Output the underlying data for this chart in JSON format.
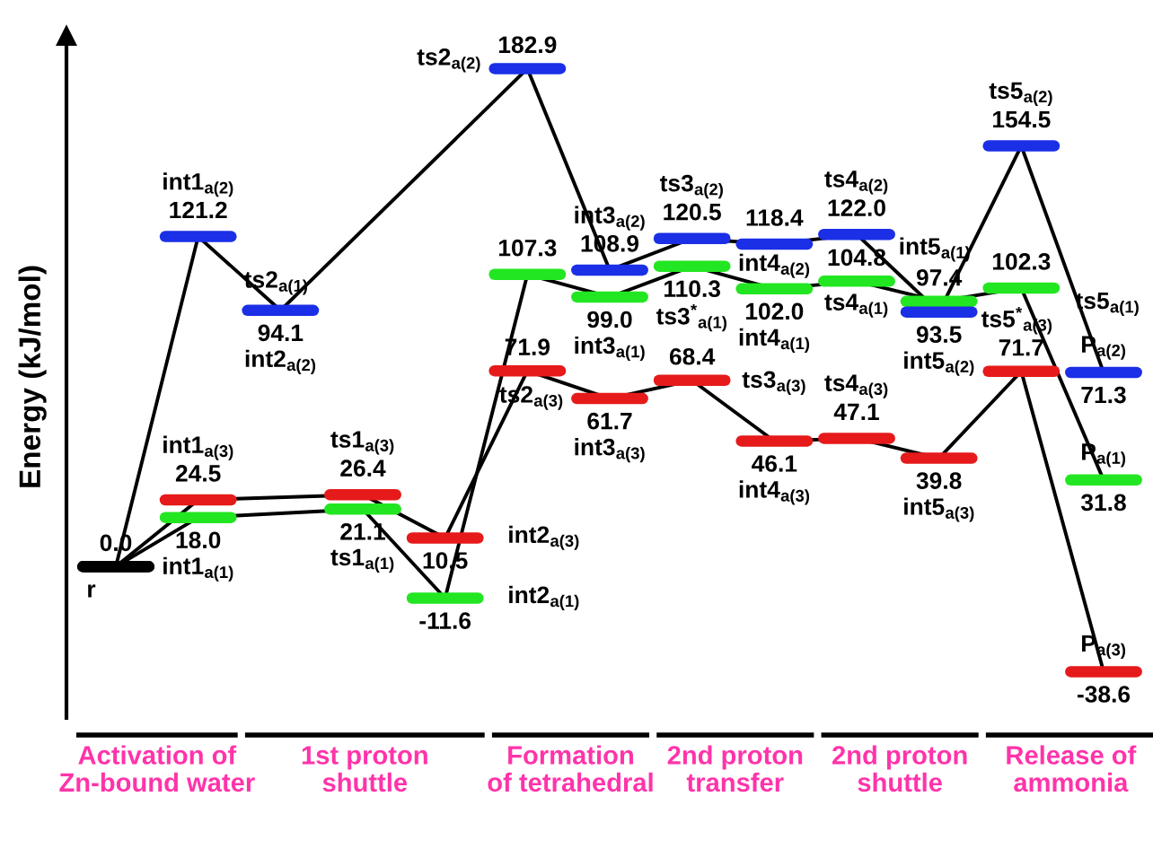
{
  "chart_data": {
    "type": "line",
    "ylabel": "Energy (kJ/mol)",
    "categories": [
      null,
      null,
      null,
      null,
      null,
      null,
      null,
      null,
      null,
      null,
      null,
      null,
      null
    ],
    "tick_labels": false,
    "series": [
      {
        "color": "#000000",
        "colors": [
          "#000000",
          "#22e622",
          "#22e622",
          "#22e622",
          "#22e622",
          "#22e622",
          "#22e622",
          "#22e622",
          "#22e622",
          "#22e622",
          "#22e622",
          "#22e622",
          "#22e622"
        ],
        "values": [
          0.0,
          18.0,
          null,
          21.1,
          -11.6,
          107.3,
          99.0,
          110.3,
          102.0,
          104.8,
          97.4,
          102.3,
          31.8
        ],
        "value_labels": [
          "0.0",
          "18.0",
          null,
          "21.1",
          "-11.6",
          "107.3",
          "99.0",
          "110.3",
          "102.0",
          "104.8",
          "97.4",
          "102.3",
          "31.8"
        ]
      },
      {
        "color": "#000000",
        "colors": [
          "#000000",
          "#1a2fe6",
          "#1a2fe6",
          "#1a2fe6",
          "#1a2fe6",
          "#1a2fe6",
          "#1a2fe6",
          "#1a2fe6",
          "#1a2fe6",
          "#1a2fe6",
          "#1a2fe6",
          "#1a2fe6",
          "#1a2fe6"
        ],
        "values": [
          0.0,
          121.2,
          94.1,
          null,
          null,
          182.9,
          108.9,
          120.5,
          118.4,
          122.0,
          93.5,
          154.5,
          71.3
        ],
        "value_labels": [
          null,
          "121.2",
          "94.1",
          null,
          null,
          "182.9",
          "108.9",
          "120.5",
          "118.4",
          "122.0",
          "93.5",
          "154.5",
          "71.3"
        ]
      },
      {
        "color": "#000000",
        "colors": [
          "#000000",
          "#e61a1a",
          "#e61a1a",
          "#e61a1a",
          "#e61a1a",
          "#e61a1a",
          "#e61a1a",
          "#e61a1a",
          "#e61a1a",
          "#e61a1a",
          "#e61a1a",
          "#e61a1a",
          "#e61a1a"
        ],
        "values": [
          0.0,
          24.5,
          null,
          26.4,
          10.5,
          71.9,
          61.7,
          68.4,
          46.1,
          47.1,
          39.8,
          71.7,
          -38.6
        ],
        "value_labels": [
          null,
          "24.5",
          null,
          "26.4",
          "10.5",
          "71.9",
          "61.7",
          "68.4",
          "46.1",
          "47.1",
          "39.8",
          "71.7",
          "-38.6"
        ]
      }
    ],
    "annotations": [
      "r",
      "int1$_{a(2)}$",
      "int1$_{a(3)}$",
      "int1$_{a(1)}$",
      "ts1$_{a(3)}$",
      "ts1$_{a(1)}$",
      "ts2$_{a(1)}$",
      "int2$_{a(2)}$",
      "int2$_{a(3)}$",
      "int2$_{a(1)}$",
      "ts2$_{a(2)}$",
      "ts2$_{a(3)}$",
      "int3$_{a(2)}$",
      "int3$_{a(1)}$",
      "int3$_{a(3)}$",
      "ts3$_{a(2)}$",
      "ts3$^{*}$$_{a(1)}$",
      "ts3$_{a(3)}$",
      "int4$_{a(2)}$",
      "int4$_{a(1)}$",
      "int4$_{a(3)}$",
      "ts4$_{a(2)}$",
      "ts4$_{a(1)}$",
      "ts4$_{a(3)}$",
      "int5$_{a(1)}$",
      "int5$_{a(2)}$",
      "int5$_{a(3)}$",
      "ts5$_{a(2)}$",
      "ts5$_{a(1)}$",
      "ts5$^{*}$$_{a(3)}$",
      "P$_{a(2)}$",
      "P$_{a(1)}$",
      "P$_{a(3)}$",
      "Activation of\nZn-bound water",
      "1st proton\nshuttle",
      "Formation\nof tetrahedral",
      "2nd proton\ntransfer",
      "2nd proton\nshuttle",
      "Release of\nammonia"
    ]
  }
}
